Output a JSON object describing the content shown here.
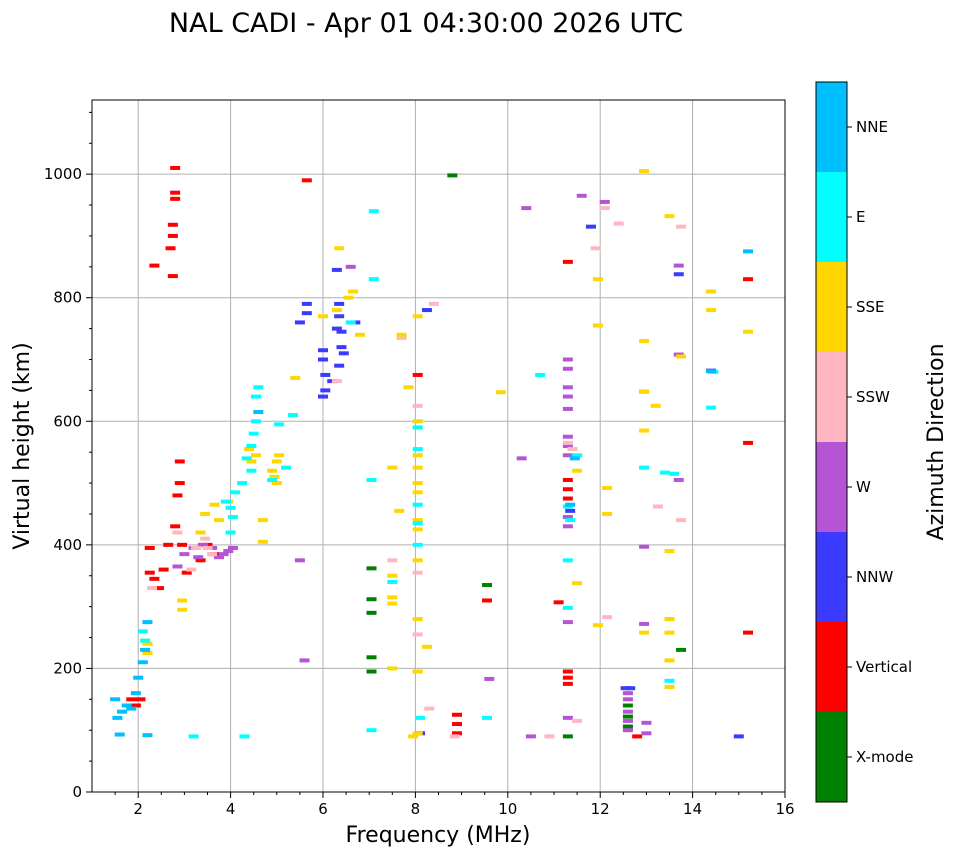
{
  "chart_data": {
    "type": "scatter",
    "title": "NAL CADI - Apr 01 04:30:00 2026 UTC",
    "xlabel": "Frequency (MHz)",
    "ylabel": "Virtual height (km)",
    "xlim": [
      1,
      16
    ],
    "ylim": [
      0,
      1120
    ],
    "xticks": [
      2,
      4,
      6,
      8,
      10,
      12,
      14,
      16
    ],
    "yticks": [
      0,
      200,
      400,
      600,
      800,
      1000
    ],
    "grid": true,
    "colorbar": {
      "label": "Azimuth Direction",
      "categories": [
        "X-mode",
        "Vertical",
        "NNW",
        "W",
        "SSW",
        "SSE",
        "E",
        "NNE"
      ],
      "colors": [
        "#008000",
        "#ff0000",
        "#3b3bff",
        "#b455d4",
        "#ffb6c1",
        "#ffd700",
        "#00ffff",
        "#00bfff"
      ]
    },
    "series": [
      {
        "name": "X-mode",
        "points": [
          [
            8.8,
            998
          ],
          [
            7.05,
            362
          ],
          [
            7.05,
            312
          ],
          [
            7.05,
            290
          ],
          [
            7.05,
            218
          ],
          [
            7.05,
            195
          ],
          [
            9.55,
            335
          ],
          [
            11.3,
            90
          ],
          [
            13.75,
            230
          ],
          [
            12.6,
            140
          ],
          [
            12.6,
            122
          ],
          [
            12.6,
            106
          ]
        ]
      },
      {
        "name": "Vertical",
        "points": [
          [
            5.65,
            990
          ],
          [
            2.8,
            1010
          ],
          [
            2.8,
            970
          ],
          [
            2.8,
            960
          ],
          [
            2.75,
            918
          ],
          [
            2.75,
            900
          ],
          [
            2.7,
            880
          ],
          [
            2.75,
            835
          ],
          [
            2.35,
            852
          ],
          [
            1.85,
            150
          ],
          [
            1.95,
            140
          ],
          [
            2.05,
            150
          ],
          [
            2.25,
            355
          ],
          [
            2.35,
            345
          ],
          [
            2.45,
            330
          ],
          [
            2.55,
            360
          ],
          [
            2.25,
            395
          ],
          [
            2.65,
            400
          ],
          [
            2.8,
            430
          ],
          [
            2.85,
            480
          ],
          [
            2.95,
            400
          ],
          [
            3.05,
            355
          ],
          [
            3.35,
            375
          ],
          [
            3.5,
            400
          ],
          [
            3.65,
            385
          ],
          [
            2.9,
            500
          ],
          [
            2.9,
            535
          ],
          [
            8.05,
            675
          ],
          [
            11.3,
            858
          ],
          [
            11.3,
            505
          ],
          [
            11.3,
            490
          ],
          [
            11.3,
            475
          ],
          [
            11.1,
            307
          ],
          [
            11.3,
            195
          ],
          [
            11.3,
            185
          ],
          [
            11.3,
            175
          ],
          [
            8.9,
            95
          ],
          [
            8.9,
            110
          ],
          [
            8.9,
            125
          ],
          [
            12.8,
            90
          ],
          [
            15.2,
            830
          ],
          [
            15.2,
            565
          ],
          [
            15.2,
            258
          ],
          [
            9.55,
            310
          ]
        ]
      },
      {
        "name": "NNW",
        "points": [
          [
            5.65,
            790
          ],
          [
            5.65,
            775
          ],
          [
            6.0,
            715
          ],
          [
            6.0,
            700
          ],
          [
            6.05,
            675
          ],
          [
            6.05,
            650
          ],
          [
            6.0,
            640
          ],
          [
            6.35,
            790
          ],
          [
            6.35,
            770
          ],
          [
            6.4,
            745
          ],
          [
            6.4,
            720
          ],
          [
            6.35,
            690
          ],
          [
            6.45,
            710
          ],
          [
            6.3,
            750
          ],
          [
            6.2,
            665
          ],
          [
            6.3,
            845
          ],
          [
            6.7,
            760
          ],
          [
            5.5,
            760
          ],
          [
            8.25,
            780
          ],
          [
            11.8,
            915
          ],
          [
            12.55,
            168
          ],
          [
            12.65,
            168
          ],
          [
            15.0,
            90
          ],
          [
            13.7,
            838
          ],
          [
            14.4,
            682
          ],
          [
            11.35,
            455
          ],
          [
            8.1,
            95
          ]
        ]
      },
      {
        "name": "W",
        "points": [
          [
            3.6,
            395
          ],
          [
            3.75,
            380
          ],
          [
            3.85,
            385
          ],
          [
            3.95,
            390
          ],
          [
            4.05,
            395
          ],
          [
            3.4,
            400
          ],
          [
            3.2,
            395
          ],
          [
            3.0,
            385
          ],
          [
            2.85,
            365
          ],
          [
            3.3,
            380
          ],
          [
            10.4,
            945
          ],
          [
            10.3,
            540
          ],
          [
            11.3,
            700
          ],
          [
            11.3,
            685
          ],
          [
            11.3,
            655
          ],
          [
            11.3,
            640
          ],
          [
            11.3,
            620
          ],
          [
            11.3,
            575
          ],
          [
            11.3,
            560
          ],
          [
            11.3,
            545
          ],
          [
            11.3,
            430
          ],
          [
            11.3,
            445
          ],
          [
            11.3,
            275
          ],
          [
            11.3,
            120
          ],
          [
            11.6,
            965
          ],
          [
            12.1,
            955
          ],
          [
            12.6,
            160
          ],
          [
            12.6,
            150
          ],
          [
            12.6,
            130
          ],
          [
            12.6,
            115
          ],
          [
            12.6,
            100
          ],
          [
            12.95,
            648
          ],
          [
            12.95,
            397
          ],
          [
            12.95,
            272
          ],
          [
            13.0,
            112
          ],
          [
            13.0,
            95
          ],
          [
            13.7,
            708
          ],
          [
            13.7,
            505
          ],
          [
            13.7,
            852
          ],
          [
            9.6,
            183
          ],
          [
            10.5,
            90
          ],
          [
            6.6,
            850
          ],
          [
            5.6,
            213
          ],
          [
            5.5,
            375
          ]
        ]
      },
      {
        "name": "SSW",
        "points": [
          [
            2.3,
            330
          ],
          [
            2.85,
            420
          ],
          [
            3.25,
            395
          ],
          [
            3.45,
            410
          ],
          [
            3.6,
            385
          ],
          [
            3.15,
            360
          ],
          [
            3.5,
            395
          ],
          [
            8.4,
            790
          ],
          [
            8.05,
            625
          ],
          [
            8.05,
            355
          ],
          [
            8.05,
            255
          ],
          [
            8.05,
            195
          ],
          [
            8.3,
            135
          ],
          [
            8.85,
            90
          ],
          [
            10.9,
            90
          ],
          [
            11.3,
            565
          ],
          [
            11.5,
            115
          ],
          [
            11.9,
            880
          ],
          [
            12.1,
            945
          ],
          [
            12.4,
            920
          ],
          [
            12.15,
            283
          ],
          [
            13.25,
            462
          ],
          [
            13.75,
            915
          ],
          [
            13.75,
            440
          ],
          [
            7.7,
            735
          ],
          [
            7.5,
            375
          ],
          [
            6.3,
            665
          ],
          [
            11.4,
            555
          ]
        ]
      },
      {
        "name": "SSE",
        "points": [
          [
            2.2,
            240
          ],
          [
            2.2,
            225
          ],
          [
            2.95,
            310
          ],
          [
            2.95,
            295
          ],
          [
            3.35,
            420
          ],
          [
            3.45,
            450
          ],
          [
            3.65,
            465
          ],
          [
            3.75,
            440
          ],
          [
            3.95,
            470
          ],
          [
            4.4,
            555
          ],
          [
            4.45,
            535
          ],
          [
            4.55,
            545
          ],
          [
            4.9,
            520
          ],
          [
            4.95,
            510
          ],
          [
            5.0,
            535
          ],
          [
            5.0,
            500
          ],
          [
            5.05,
            545
          ],
          [
            4.7,
            440
          ],
          [
            4.7,
            405
          ],
          [
            5.4,
            670
          ],
          [
            6.65,
            810
          ],
          [
            6.55,
            800
          ],
          [
            6.35,
            880
          ],
          [
            6.3,
            780
          ],
          [
            6.0,
            770
          ],
          [
            6.8,
            740
          ],
          [
            7.5,
            525
          ],
          [
            7.5,
            350
          ],
          [
            7.5,
            315
          ],
          [
            7.5,
            305
          ],
          [
            7.5,
            200
          ],
          [
            7.7,
            740
          ],
          [
            7.65,
            455
          ],
          [
            7.85,
            655
          ],
          [
            8.05,
            770
          ],
          [
            8.05,
            600
          ],
          [
            8.05,
            545
          ],
          [
            8.05,
            525
          ],
          [
            8.05,
            500
          ],
          [
            8.05,
            485
          ],
          [
            8.05,
            440
          ],
          [
            8.05,
            425
          ],
          [
            8.05,
            375
          ],
          [
            8.05,
            280
          ],
          [
            8.05,
            195
          ],
          [
            8.05,
            95
          ],
          [
            8.25,
            235
          ],
          [
            9.85,
            647
          ],
          [
            11.5,
            520
          ],
          [
            11.5,
            338
          ],
          [
            11.95,
            830
          ],
          [
            11.95,
            755
          ],
          [
            11.95,
            270
          ],
          [
            12.15,
            492
          ],
          [
            12.15,
            450
          ],
          [
            12.95,
            1005
          ],
          [
            12.95,
            730
          ],
          [
            12.95,
            648
          ],
          [
            12.95,
            585
          ],
          [
            12.95,
            258
          ],
          [
            13.2,
            625
          ],
          [
            13.5,
            932
          ],
          [
            13.5,
            390
          ],
          [
            13.5,
            280
          ],
          [
            13.5,
            258
          ],
          [
            13.5,
            213
          ],
          [
            13.5,
            170
          ],
          [
            13.75,
            705
          ],
          [
            14.4,
            780
          ],
          [
            14.4,
            810
          ],
          [
            15.2,
            745
          ],
          [
            7.95,
            90
          ]
        ]
      },
      {
        "name": "E",
        "points": [
          [
            2.1,
            260
          ],
          [
            2.15,
            245
          ],
          [
            3.9,
            470
          ],
          [
            4.0,
            460
          ],
          [
            4.05,
            445
          ],
          [
            4.0,
            420
          ],
          [
            4.1,
            485
          ],
          [
            4.25,
            500
          ],
          [
            4.35,
            540
          ],
          [
            4.45,
            560
          ],
          [
            4.5,
            580
          ],
          [
            4.55,
            600
          ],
          [
            4.55,
            640
          ],
          [
            4.6,
            655
          ],
          [
            4.45,
            520
          ],
          [
            4.9,
            505
          ],
          [
            5.05,
            595
          ],
          [
            5.2,
            525
          ],
          [
            5.35,
            610
          ],
          [
            6.6,
            760
          ],
          [
            7.1,
            940
          ],
          [
            7.1,
            830
          ],
          [
            7.05,
            505
          ],
          [
            7.05,
            100
          ],
          [
            7.5,
            340
          ],
          [
            8.05,
            590
          ],
          [
            8.05,
            555
          ],
          [
            8.05,
            465
          ],
          [
            8.05,
            435
          ],
          [
            8.05,
            400
          ],
          [
            8.1,
            120
          ],
          [
            10.7,
            675
          ],
          [
            11.3,
            462
          ],
          [
            11.3,
            375
          ],
          [
            11.3,
            298
          ],
          [
            11.35,
            440
          ],
          [
            11.5,
            545
          ],
          [
            12.95,
            525
          ],
          [
            13.4,
            517
          ],
          [
            13.6,
            515
          ],
          [
            13.5,
            180
          ],
          [
            14.4,
            622
          ],
          [
            14.45,
            680
          ],
          [
            9.55,
            120
          ],
          [
            4.3,
            90
          ],
          [
            3.2,
            90
          ]
        ]
      },
      {
        "name": "NNE",
        "points": [
          [
            1.55,
            120
          ],
          [
            1.65,
            130
          ],
          [
            1.75,
            140
          ],
          [
            1.85,
            135
          ],
          [
            1.95,
            160
          ],
          [
            2.0,
            185
          ],
          [
            2.1,
            210
          ],
          [
            2.15,
            230
          ],
          [
            2.2,
            275
          ],
          [
            1.5,
            150
          ],
          [
            2.2,
            92
          ],
          [
            4.6,
            615
          ],
          [
            11.45,
            540
          ],
          [
            11.35,
            465
          ],
          [
            15.2,
            875
          ],
          [
            14.4,
            681
          ],
          [
            1.6,
            93
          ]
        ]
      }
    ]
  }
}
